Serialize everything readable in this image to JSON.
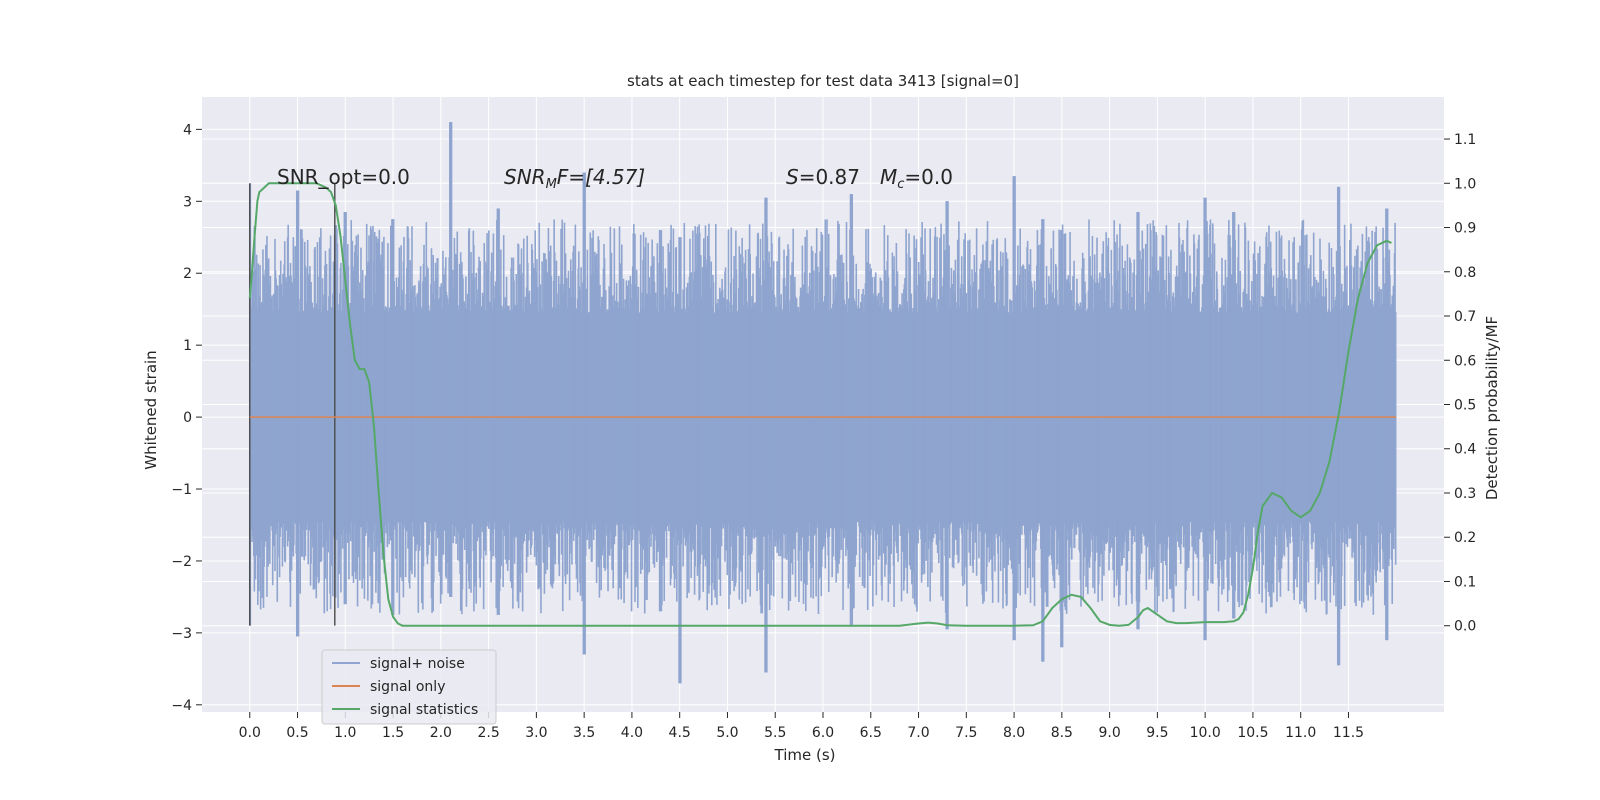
{
  "chart_data": {
    "type": "line",
    "title": "stats at each timestep for test data 3413 [signal=0]",
    "xlabel": "Time (s)",
    "ylabel": "Whitened strain",
    "ylabel_right": "Detection probability/MF",
    "xlim": [
      -0.5,
      12.5
    ],
    "ylim": [
      -4.1,
      4.45
    ],
    "ylim_right": [
      -0.195,
      1.195
    ],
    "x_ticks": [
      "0.0",
      "0.5",
      "1.0",
      "1.5",
      "2.0",
      "2.5",
      "3.0",
      "3.5",
      "4.0",
      "4.5",
      "5.0",
      "5.5",
      "6.0",
      "6.5",
      "7.0",
      "7.5",
      "8.0",
      "8.5",
      "9.0",
      "9.5",
      "10.0",
      "10.5",
      "11.0",
      "11.5"
    ],
    "y_ticks": [
      "−4",
      "−3",
      "−2",
      "−1",
      "0",
      "1",
      "2",
      "3",
      "4"
    ],
    "y_ticks_right": [
      "0.0",
      "0.1",
      "0.2",
      "0.3",
      "0.4",
      "0.5",
      "0.6",
      "0.7",
      "0.8",
      "0.9",
      "1.0",
      "1.1"
    ],
    "grid": true,
    "legend_position": "lower-left",
    "annotations": {
      "snr_opt": "SNR_opt=0.0",
      "snr_mf_main": "SNR",
      "snr_mf_sub": "M",
      "snr_mf_rest": "F=[4.57]",
      "s_main": "S",
      "s_rest": "=0.87",
      "mc_main": "M",
      "mc_sub": "c",
      "mc_rest": "=0.0"
    },
    "noise_band": {
      "x_start": 0.0,
      "x_end": 12.0,
      "core_low": -1.45,
      "core_high": 1.45,
      "spike_max": 4.1,
      "spike_min": -3.7
    },
    "vertical_lines": [
      0.0,
      0.89
    ],
    "series": [
      {
        "name": "signal+ noise",
        "color": "#8fa5cf",
        "envelope_peaks": [
          [
            0.0,
            3.25,
            -2.9
          ],
          [
            0.5,
            3.15,
            -3.05
          ],
          [
            1.0,
            2.85,
            -2.6
          ],
          [
            1.5,
            2.75,
            -2.75
          ],
          [
            2.1,
            4.1,
            -2.5
          ],
          [
            2.6,
            2.9,
            -2.75
          ],
          [
            3.5,
            3.4,
            -3.3
          ],
          [
            4.3,
            2.6,
            -2.7
          ],
          [
            4.5,
            2.5,
            -3.7
          ],
          [
            5.4,
            3.05,
            -3.55
          ],
          [
            6.3,
            3.1,
            -2.9
          ],
          [
            7.3,
            3.0,
            -2.95
          ],
          [
            8.0,
            3.35,
            -3.1
          ],
          [
            8.3,
            2.75,
            -3.4
          ],
          [
            8.5,
            2.6,
            -3.2
          ],
          [
            9.3,
            2.85,
            -2.95
          ],
          [
            10.0,
            3.05,
            -3.1
          ],
          [
            10.3,
            2.85,
            -2.8
          ],
          [
            11.4,
            3.2,
            -3.45
          ],
          [
            11.9,
            2.9,
            -3.1
          ]
        ]
      },
      {
        "name": "signal only",
        "color": "#dd8452",
        "x": [
          0.0,
          12.0
        ],
        "y": [
          0.0,
          0.0
        ]
      },
      {
        "name": "signal statistics",
        "color": "#55a868",
        "axis": "right",
        "x": [
          0.0,
          0.02,
          0.05,
          0.08,
          0.1,
          0.2,
          0.3,
          0.5,
          0.7,
          0.8,
          0.85,
          0.9,
          0.95,
          1.0,
          1.05,
          1.1,
          1.15,
          1.2,
          1.25,
          1.3,
          1.35,
          1.4,
          1.45,
          1.5,
          1.55,
          1.6,
          1.7,
          2.0,
          3.0,
          4.0,
          4.5,
          5.0,
          6.0,
          6.5,
          6.8,
          7.0,
          7.1,
          7.2,
          7.3,
          7.5,
          8.0,
          8.2,
          8.3,
          8.4,
          8.5,
          8.6,
          8.7,
          8.8,
          8.9,
          9.0,
          9.1,
          9.2,
          9.3,
          9.35,
          9.4,
          9.5,
          9.6,
          9.7,
          9.8,
          10.0,
          10.2,
          10.3,
          10.35,
          10.4,
          10.45,
          10.5,
          10.55,
          10.6,
          10.7,
          10.8,
          10.9,
          11.0,
          11.1,
          11.2,
          11.3,
          11.4,
          11.5,
          11.6,
          11.7,
          11.8,
          11.9,
          11.95
        ],
        "y": [
          0.74,
          0.79,
          0.88,
          0.96,
          0.98,
          1.0,
          1.0,
          1.0,
          1.0,
          0.99,
          0.98,
          0.95,
          0.88,
          0.78,
          0.68,
          0.6,
          0.58,
          0.58,
          0.55,
          0.45,
          0.3,
          0.16,
          0.06,
          0.02,
          0.005,
          0.0,
          0.0,
          0.0,
          0.0,
          0.0,
          0.0,
          0.0,
          0.0,
          0.0,
          0.0,
          0.005,
          0.007,
          0.005,
          0.001,
          0.0,
          0.0,
          0.001,
          0.01,
          0.04,
          0.06,
          0.07,
          0.065,
          0.04,
          0.01,
          0.002,
          0.0,
          0.002,
          0.02,
          0.035,
          0.04,
          0.025,
          0.01,
          0.006,
          0.006,
          0.008,
          0.008,
          0.01,
          0.015,
          0.03,
          0.07,
          0.13,
          0.21,
          0.27,
          0.3,
          0.29,
          0.26,
          0.245,
          0.26,
          0.3,
          0.37,
          0.48,
          0.62,
          0.74,
          0.82,
          0.86,
          0.87,
          0.865
        ]
      }
    ],
    "legend": [
      "signal+ noise",
      "signal only",
      "signal statistics"
    ]
  },
  "colors": {
    "axes_bg": "#eaeaf2",
    "grid": "#ffffff",
    "noise": "#8fa5cf",
    "signal_only": "#dd8452",
    "statistics": "#55a868",
    "vline": "#4a4a4a"
  }
}
